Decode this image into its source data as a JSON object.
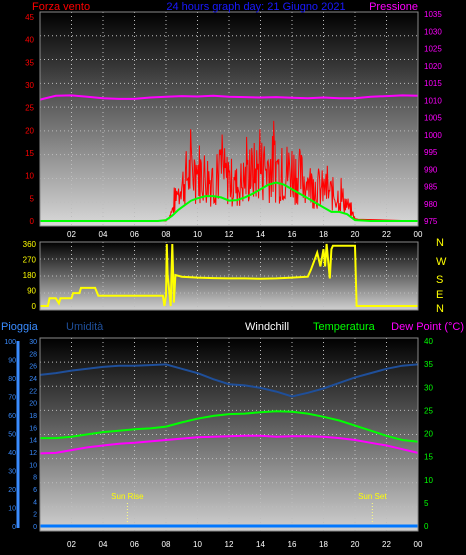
{
  "colors": {
    "wind": "#ff0000",
    "gust_avg": "#00ff00",
    "pressure": "#ff00ff",
    "direction": "#ffff00",
    "rain": "#0077ff",
    "humidity": "#1f4f9a",
    "windchill": "#ffffff",
    "temperature": "#00ff00",
    "dewpoint": "#ff00ff",
    "title": "#1a1aff",
    "axis_red": "#ff0000",
    "axis_magenta": "#ff00ff",
    "axis_yellow": "#ffff00",
    "axis_blue": "#3a8cff",
    "axis_green": "#00ff00",
    "axis_white": "#ffffff"
  },
  "time_labels": [
    "02",
    "04",
    "06",
    "08",
    "10",
    "12",
    "14",
    "16",
    "18",
    "20",
    "22",
    "00"
  ],
  "chart_data": [
    {
      "type": "line",
      "title": "24 hours graph day: 21 Giugno 2021",
      "left_axis_label": "Forza vento",
      "right_axis_label": "Pressione",
      "ylim_left": [
        0,
        45
      ],
      "ylim_right": [
        975,
        1035
      ],
      "left_ticks": [
        "45",
        "40",
        "35",
        "30",
        "25",
        "20",
        "15",
        "10",
        "5",
        "0"
      ],
      "right_ticks": [
        "1035",
        "1030",
        "1025",
        "1020",
        "1015",
        "1010",
        "1005",
        "1000",
        "995",
        "990",
        "985",
        "980",
        "975"
      ],
      "grid": true,
      "series": [
        {
          "axis": "right",
          "x": [
            0,
            1,
            2,
            3,
            4,
            5,
            6,
            7,
            8,
            9,
            10,
            11,
            12,
            13,
            14,
            15,
            16,
            17,
            18,
            19,
            20,
            21,
            22,
            23,
            24
          ],
          "values": [
            1010.2,
            1011.3,
            1011.4,
            1011.0,
            1010.6,
            1010.4,
            1010.4,
            1010.8,
            1011.0,
            1011.2,
            1011.1,
            1011.3,
            1011.0,
            1010.9,
            1010.8,
            1010.9,
            1010.7,
            1010.6,
            1010.8,
            1010.6,
            1010.6,
            1011.0,
            1011.2,
            1011.4,
            1011.3
          ]
        },
        {
          "axis": "left",
          "x": [
            0,
            2,
            4,
            6,
            7.5,
            8,
            8.2,
            8.4,
            8.6,
            8.8,
            9,
            9.3,
            9.6,
            10,
            10.5,
            11,
            11.5,
            12,
            12.5,
            13,
            13.5,
            14,
            14.5,
            15,
            15.5,
            16,
            16.5,
            17,
            17.5,
            18,
            18.5,
            19,
            19.3,
            19.6,
            20,
            21,
            22,
            23,
            24
          ],
          "values": [
            0,
            0,
            0,
            0,
            0,
            0.3,
            1,
            3,
            6,
            9,
            10,
            13,
            14,
            15,
            13,
            12,
            14,
            12,
            10,
            12,
            14,
            15,
            16,
            15,
            14,
            15,
            13,
            11,
            10,
            9,
            8,
            7,
            6,
            4,
            0.5,
            0,
            0,
            0,
            0
          ]
        },
        {
          "axis": "left",
          "x": [
            0,
            2,
            4,
            6,
            7.5,
            8,
            8.4,
            8.8,
            9.2,
            9.6,
            10,
            10.5,
            11,
            11.5,
            12,
            12.5,
            13,
            13.5,
            14,
            14.5,
            15,
            15.5,
            16,
            16.5,
            17,
            17.5,
            18,
            18.5,
            19,
            19.5,
            20,
            21,
            22,
            23,
            24
          ],
          "values": [
            0,
            0,
            0,
            0,
            0,
            0.2,
            1.2,
            2.5,
            3.5,
            4.5,
            5,
            5.5,
            5.5,
            5.2,
            4.5,
            4.6,
            5.2,
            6,
            7,
            8,
            8.5,
            8,
            7,
            6,
            5,
            4,
            3,
            2,
            2,
            1.5,
            0.2,
            0,
            0,
            0,
            0
          ]
        }
      ]
    },
    {
      "type": "line",
      "ylim": [
        0,
        360
      ],
      "left_ticks": [
        "360",
        "270",
        "180",
        "90",
        "0"
      ],
      "right_ticks": [
        "N",
        "W",
        "S",
        "E",
        "N"
      ],
      "grid": true,
      "series": [
        {
          "x": [
            0,
            0.5,
            0.6,
            1,
            1.2,
            1.3,
            1.6,
            2,
            2.1,
            2.5,
            2.6,
            3.5,
            3.7,
            7.8,
            7.9,
            8.0,
            8.05,
            8.1,
            8.3,
            8.4,
            8.5,
            8.6,
            9,
            10,
            11,
            12,
            13,
            14,
            15,
            16,
            17,
            17.2,
            17.4,
            17.6,
            17.8,
            18,
            18.1,
            18.2,
            18.4,
            18.5,
            18.6,
            20,
            20.1,
            24
          ],
          "values": [
            0,
            0,
            45,
            45,
            15,
            45,
            45,
            45,
            75,
            75,
            105,
            105,
            60,
            60,
            0,
            60,
            360,
            180,
            0,
            360,
            20,
            180,
            170,
            165,
            162,
            160,
            160,
            158,
            160,
            165,
            170,
            210,
            260,
            310,
            230,
            330,
            230,
            360,
            160,
            330,
            350,
            350,
            0,
            0
          ]
        }
      ]
    },
    {
      "type": "line",
      "labels": [
        "Pioggia",
        "Umidità",
        "Windchill",
        "Temperatura",
        "Dew Point (°C)"
      ],
      "ylim_rain": [
        0,
        100
      ],
      "ylim_humidity": [
        0,
        30
      ],
      "ylim_temperature": [
        0,
        40
      ],
      "rain_ticks": [
        "100",
        "90",
        "80",
        "70",
        "60",
        "50",
        "40",
        "30",
        "20",
        "10",
        "0"
      ],
      "humidity_ticks": [
        "30",
        "28",
        "26",
        "24",
        "22",
        "20",
        "18",
        "16",
        "14",
        "12",
        "10",
        "8",
        "6",
        "4",
        "2",
        "0"
      ],
      "temperature_ticks": [
        "40",
        "35",
        "30",
        "25",
        "20",
        "15",
        "10",
        "5",
        "0"
      ],
      "annotations": [
        {
          "label": "Sun Rise",
          "x": 5.55
        },
        {
          "label": "Sun Set",
          "x": 21.1
        }
      ],
      "grid": true,
      "series": [
        {
          "name": "Pioggia",
          "x": [
            0,
            24
          ],
          "values": [
            0,
            0
          ]
        },
        {
          "name": "Umidità",
          "x": [
            0,
            1,
            2,
            3,
            4,
            5,
            6,
            7,
            8,
            9,
            10,
            11,
            12,
            13,
            14,
            15,
            16,
            17,
            18,
            19,
            20,
            21,
            22,
            23,
            24
          ],
          "values": [
            24.5,
            24.8,
            25.2,
            25.5,
            25.8,
            26.0,
            26.0,
            26.1,
            26.2,
            25.5,
            24.8,
            23.8,
            23.0,
            22.8,
            22.4,
            21.8,
            21.0,
            21.6,
            22.3,
            23.2,
            24.1,
            24.8,
            25.5,
            26.0,
            26.2
          ]
        },
        {
          "name": "Temperatura",
          "x": [
            0,
            1,
            2,
            3,
            4,
            5,
            6,
            7,
            8,
            9,
            10,
            11,
            12,
            13,
            14,
            15,
            16,
            17,
            18,
            19,
            20,
            21,
            22,
            23,
            24
          ],
          "values": [
            19.0,
            19.0,
            19.3,
            19.8,
            20.3,
            20.6,
            20.9,
            21.1,
            21.5,
            22.4,
            23.2,
            23.8,
            24.2,
            24.3,
            24.6,
            24.8,
            24.7,
            24.3,
            23.6,
            22.8,
            21.7,
            20.6,
            19.5,
            18.6,
            18.2
          ]
        },
        {
          "name": "Dew Point (°C)",
          "x": [
            0,
            1,
            2,
            3,
            4,
            5,
            6,
            7,
            8,
            9,
            10,
            11,
            12,
            13,
            14,
            15,
            16,
            17,
            18,
            19,
            20,
            21,
            22,
            23,
            24
          ],
          "values": [
            15.7,
            15.8,
            16.4,
            17.0,
            17.4,
            17.8,
            18.0,
            18.3,
            18.6,
            18.9,
            19.2,
            19.3,
            19.4,
            19.5,
            19.5,
            19.3,
            19.4,
            19.4,
            19.3,
            19.0,
            18.6,
            18.0,
            17.4,
            16.6,
            15.8
          ]
        }
      ]
    }
  ]
}
